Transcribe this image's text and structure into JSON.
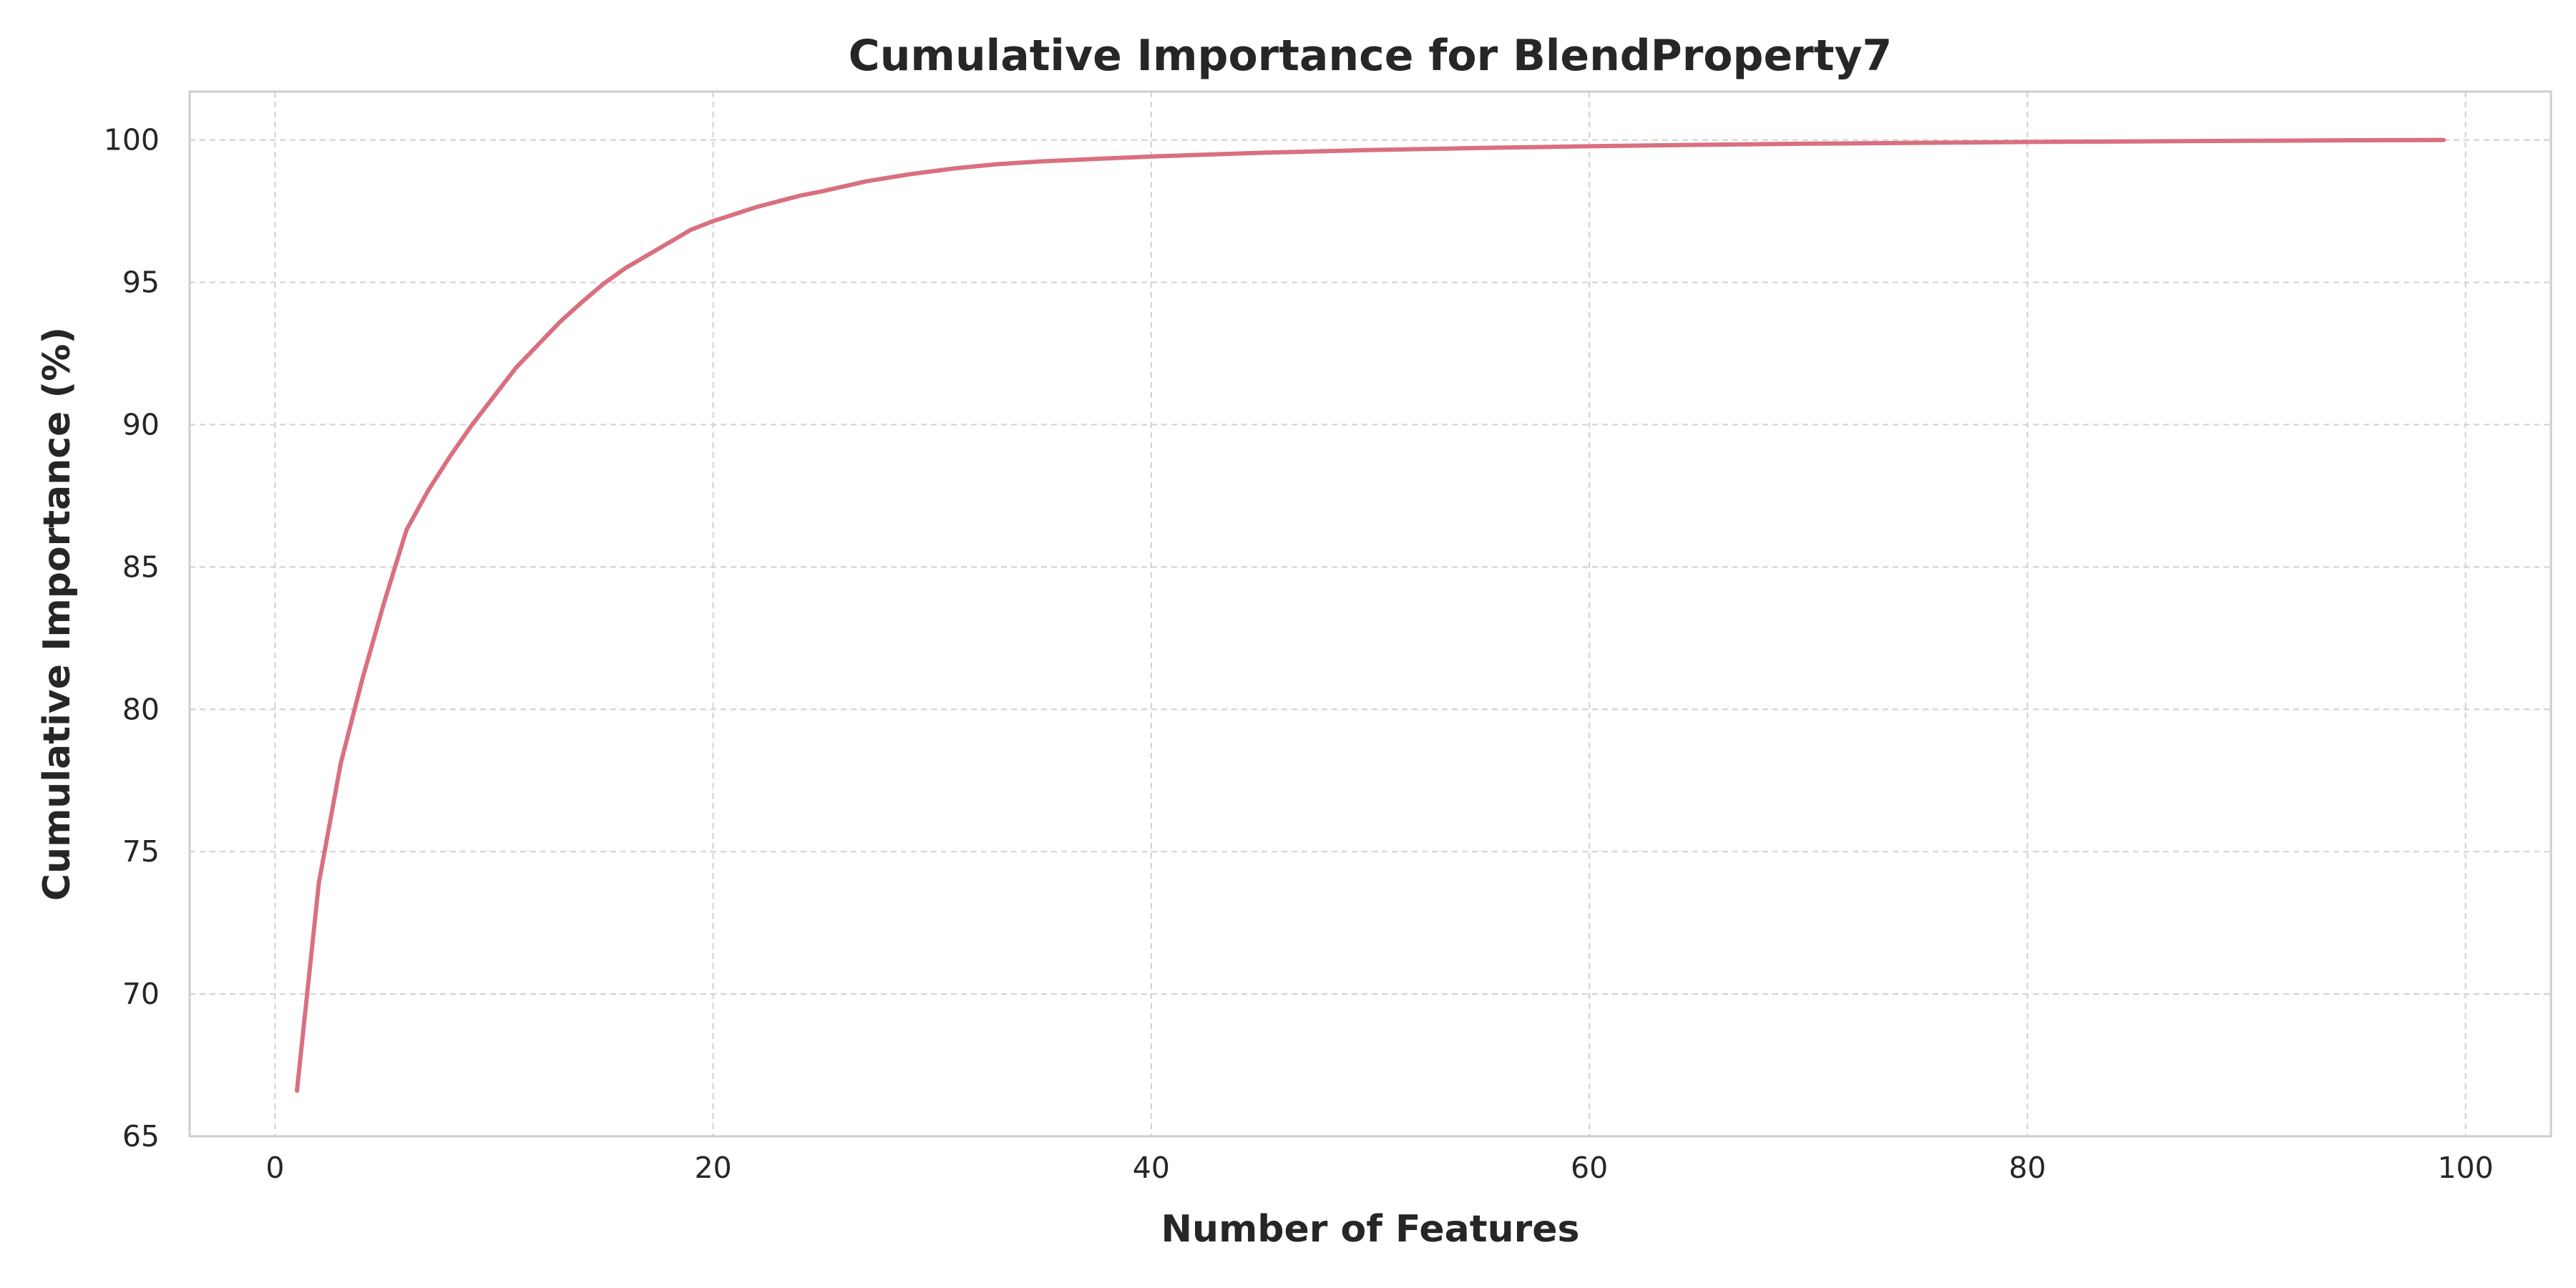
{
  "chart_data": {
    "type": "line",
    "title": "Cumulative Importance for BlendProperty7",
    "xlabel": "Number of Features",
    "ylabel": "Cumulative Importance (%)",
    "xlim": [
      -3.9,
      103.9
    ],
    "ylim": [
      65,
      101.7
    ],
    "x_ticks": [
      0,
      20,
      40,
      60,
      80,
      100
    ],
    "y_ticks": [
      65,
      70,
      75,
      80,
      85,
      90,
      95,
      100
    ],
    "grid": true,
    "legend": "none",
    "series": [
      {
        "name": "BlendProperty7",
        "color": "#d9707f",
        "x": [
          1,
          2,
          3,
          4,
          5,
          6,
          7,
          8,
          9,
          10,
          11,
          12,
          13,
          14,
          15,
          16,
          17,
          18,
          19,
          20,
          21,
          22,
          23,
          24,
          25,
          27,
          29,
          31,
          33,
          35,
          37,
          40,
          45,
          50,
          55,
          60,
          65,
          70,
          75,
          80,
          85,
          90,
          95,
          99
        ],
        "values": [
          66.6,
          73.9,
          78.1,
          81.1,
          83.8,
          86.3,
          87.7,
          88.9,
          90.0,
          91.0,
          92.0,
          92.8,
          93.6,
          94.3,
          94.95,
          95.5,
          95.95,
          96.4,
          96.85,
          97.15,
          97.4,
          97.65,
          97.85,
          98.05,
          98.2,
          98.55,
          98.8,
          99.0,
          99.15,
          99.25,
          99.32,
          99.42,
          99.55,
          99.65,
          99.72,
          99.78,
          99.83,
          99.87,
          99.9,
          99.93,
          99.95,
          99.97,
          99.99,
          100.0
        ]
      }
    ]
  }
}
